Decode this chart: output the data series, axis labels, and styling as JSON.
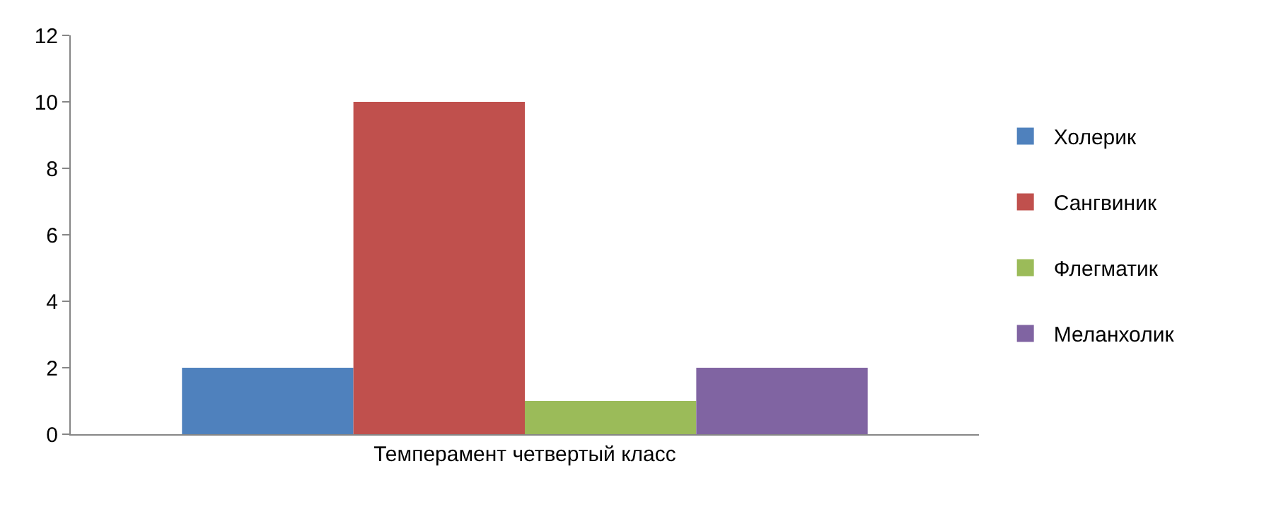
{
  "chart_data": {
    "type": "bar",
    "categories": [
      "Темперамент четвертый класс"
    ],
    "series": [
      {
        "name": "Холерик",
        "color": "#4f81bd",
        "values": [
          2
        ]
      },
      {
        "name": "Сангвиник",
        "color": "#c0504d",
        "values": [
          10
        ]
      },
      {
        "name": "Флегматик",
        "color": "#9bbb59",
        "values": [
          1
        ]
      },
      {
        "name": "Меланхолик",
        "color": "#8064a2",
        "values": [
          2
        ]
      }
    ],
    "ylim": [
      0,
      12
    ],
    "yticks": [
      0,
      2,
      4,
      6,
      8,
      10,
      12
    ],
    "legend": "right"
  }
}
